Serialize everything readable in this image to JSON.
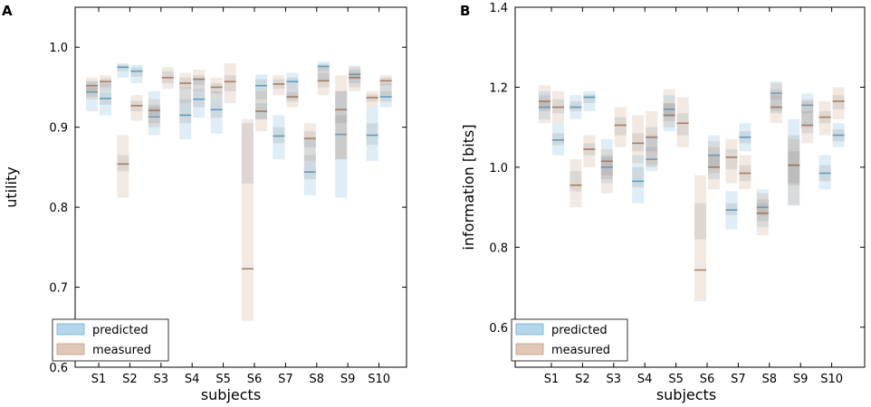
{
  "colors": {
    "predicted_fill": "#6baed6",
    "predicted_line": "#4a90b8",
    "measured_fill": "#c49a7e",
    "measured_line": "#9c6f54",
    "median_line": "#7a7a7a",
    "inner_fill": "#808080"
  },
  "chart_data": [
    {
      "type": "box",
      "panel_label": "A",
      "xlabel": "subjects",
      "ylabel": "utility",
      "ylim": [
        0.6,
        1.05
      ],
      "yticks": [
        0.6,
        0.7,
        0.8,
        0.9,
        1.0
      ],
      "ytick_labels": [
        "0.6",
        "0.7",
        "0.8",
        "0.9",
        "1.0"
      ],
      "categories": [
        "S1",
        "S2",
        "S3",
        "S4",
        "S5",
        "S6",
        "S7",
        "S8",
        "S9",
        "S10"
      ],
      "legend": [
        "predicted",
        "measured"
      ],
      "legend_position": "lower-left",
      "series": [
        {
          "name": "predicted",
          "subseries": [
            {
              "subject": "S1",
              "offset": -1,
              "low": 0.92,
              "high": 0.958,
              "mid": 0.944,
              "q1": 0.938,
              "q3": 0.95
            },
            {
              "subject": "S1",
              "offset": 0,
              "low": 0.915,
              "high": 0.955,
              "mid": 0.936,
              "q1": 0.928,
              "q3": 0.944
            },
            {
              "subject": "S2",
              "offset": -1,
              "low": 0.962,
              "high": 0.98,
              "mid": 0.975,
              "q1": 0.97,
              "q3": 0.978
            },
            {
              "subject": "S2",
              "offset": 0,
              "low": 0.955,
              "high": 0.978,
              "mid": 0.97,
              "q1": 0.963,
              "q3": 0.975
            },
            {
              "subject": "S3",
              "offset": -1,
              "low": 0.89,
              "high": 0.945,
              "mid": 0.913,
              "q1": 0.905,
              "q3": 0.925
            },
            {
              "subject": "S4",
              "offset": -1,
              "low": 0.885,
              "high": 0.95,
              "mid": 0.915,
              "q1": 0.905,
              "q3": 0.935
            },
            {
              "subject": "S4",
              "offset": 0,
              "low": 0.912,
              "high": 0.962,
              "mid": 0.935,
              "q1": 0.925,
              "q3": 0.948
            },
            {
              "subject": "S5",
              "offset": -1,
              "low": 0.892,
              "high": 0.945,
              "mid": 0.922,
              "q1": 0.912,
              "q3": 0.932
            },
            {
              "subject": "S6",
              "offset": 0,
              "low": 0.91,
              "high": 0.966,
              "mid": 0.952,
              "q1": 0.935,
              "q3": 0.96
            },
            {
              "subject": "S7",
              "offset": -1,
              "low": 0.86,
              "high": 0.915,
              "mid": 0.889,
              "q1": 0.88,
              "q3": 0.9
            },
            {
              "subject": "S7",
              "offset": 0,
              "low": 0.935,
              "high": 0.968,
              "mid": 0.957,
              "q1": 0.948,
              "q3": 0.962
            },
            {
              "subject": "S8",
              "offset": -1,
              "low": 0.815,
              "high": 0.885,
              "mid": 0.844,
              "q1": 0.835,
              "q3": 0.865
            },
            {
              "subject": "S8",
              "offset": 0,
              "low": 0.958,
              "high": 0.982,
              "mid": 0.976,
              "q1": 0.97,
              "q3": 0.979
            },
            {
              "subject": "S9",
              "offset": -1,
              "low": 0.812,
              "high": 0.945,
              "mid": 0.891,
              "q1": 0.86,
              "q3": 0.915
            },
            {
              "subject": "S9",
              "offset": 0,
              "low": 0.95,
              "high": 0.977,
              "mid": 0.966,
              "q1": 0.96,
              "q3": 0.972
            },
            {
              "subject": "S10",
              "offset": -1,
              "low": 0.858,
              "high": 0.925,
              "mid": 0.89,
              "q1": 0.878,
              "q3": 0.905
            },
            {
              "subject": "S10",
              "offset": 0,
              "low": 0.925,
              "high": 0.955,
              "mid": 0.938,
              "q1": 0.932,
              "q3": 0.945
            }
          ]
        },
        {
          "name": "measured",
          "subseries": [
            {
              "subject": "S1",
              "offset": 0,
              "low": 0.945,
              "high": 0.965,
              "mid": 0.957,
              "q1": 0.95,
              "q3": 0.961
            },
            {
              "subject": "S1",
              "offset": -1,
              "low": 0.935,
              "high": 0.962,
              "mid": 0.952,
              "q1": 0.945,
              "q3": 0.957
            },
            {
              "subject": "S2",
              "offset": -1,
              "low": 0.812,
              "high": 0.89,
              "mid": 0.854,
              "q1": 0.845,
              "q3": 0.865
            },
            {
              "subject": "S2",
              "offset": 0,
              "low": 0.908,
              "high": 0.94,
              "mid": 0.927,
              "q1": 0.92,
              "q3": 0.933
            },
            {
              "subject": "S3",
              "offset": 0,
              "low": 0.948,
              "high": 0.975,
              "mid": 0.962,
              "q1": 0.955,
              "q3": 0.97
            },
            {
              "subject": "S3",
              "offset": -1,
              "low": 0.9,
              "high": 0.935,
              "mid": 0.921,
              "q1": 0.915,
              "q3": 0.928
            },
            {
              "subject": "S4",
              "offset": -1,
              "low": 0.93,
              "high": 0.968,
              "mid": 0.955,
              "q1": 0.948,
              "q3": 0.962
            },
            {
              "subject": "S4",
              "offset": 0,
              "low": 0.945,
              "high": 0.972,
              "mid": 0.96,
              "q1": 0.953,
              "q3": 0.965
            },
            {
              "subject": "S5",
              "offset": -1,
              "low": 0.932,
              "high": 0.962,
              "mid": 0.95,
              "q1": 0.942,
              "q3": 0.955
            },
            {
              "subject": "S5",
              "offset": 0,
              "low": 0.93,
              "high": 0.98,
              "mid": 0.957,
              "q1": 0.945,
              "q3": 0.965
            },
            {
              "subject": "S6",
              "offset": -1,
              "low": 0.658,
              "high": 0.91,
              "mid": 0.723,
              "q1": 0.83,
              "q3": 0.905
            },
            {
              "subject": "S6",
              "offset": 0,
              "low": 0.895,
              "high": 0.945,
              "mid": 0.92,
              "q1": 0.91,
              "q3": 0.93
            },
            {
              "subject": "S7",
              "offset": -1,
              "low": 0.94,
              "high": 0.965,
              "mid": 0.954,
              "q1": 0.948,
              "q3": 0.96
            },
            {
              "subject": "S7",
              "offset": 0,
              "low": 0.925,
              "high": 0.948,
              "mid": 0.938,
              "q1": 0.932,
              "q3": 0.944
            },
            {
              "subject": "S8",
              "offset": -1,
              "low": 0.858,
              "high": 0.905,
              "mid": 0.886,
              "q1": 0.875,
              "q3": 0.895
            },
            {
              "subject": "S8",
              "offset": 0,
              "low": 0.94,
              "high": 0.975,
              "mid": 0.958,
              "q1": 0.95,
              "q3": 0.968
            },
            {
              "subject": "S9",
              "offset": -1,
              "low": 0.86,
              "high": 0.965,
              "mid": 0.922,
              "q1": 0.905,
              "q3": 0.945
            },
            {
              "subject": "S9",
              "offset": 0,
              "low": 0.945,
              "high": 0.975,
              "mid": 0.962,
              "q1": 0.955,
              "q3": 0.968
            },
            {
              "subject": "S10",
              "offset": -1,
              "low": 0.925,
              "high": 0.945,
              "mid": 0.937,
              "q1": 0.932,
              "q3": 0.941
            },
            {
              "subject": "S10",
              "offset": 0,
              "low": 0.94,
              "high": 0.965,
              "mid": 0.958,
              "q1": 0.952,
              "q3": 0.962
            }
          ]
        }
      ]
    },
    {
      "type": "box",
      "panel_label": "B",
      "xlabel": "subjects",
      "ylabel": "information [bits]",
      "ylim": [
        0.5,
        1.4
      ],
      "yticks": [
        0.6,
        0.8,
        1.0,
        1.2,
        1.4
      ],
      "ytick_labels": [
        "0.6",
        "0.8",
        "1.0",
        "1.2",
        "1.4"
      ],
      "categories": [
        "S1",
        "S2",
        "S3",
        "S4",
        "S5",
        "S6",
        "S7",
        "S8",
        "S9",
        "S10"
      ],
      "legend": [
        "predicted",
        "measured"
      ],
      "legend_position": "lower-left",
      "series": [
        {
          "name": "predicted",
          "subseries": [
            {
              "subject": "S1",
              "offset": -1,
              "low": 1.12,
              "high": 1.19,
              "mid": 1.15,
              "q1": 1.14,
              "q3": 1.165
            },
            {
              "subject": "S1",
              "offset": 0,
              "low": 1.03,
              "high": 1.11,
              "mid": 1.068,
              "q1": 1.055,
              "q3": 1.085
            },
            {
              "subject": "S2",
              "offset": -1,
              "low": 1.12,
              "high": 1.18,
              "mid": 1.15,
              "q1": 1.14,
              "q3": 1.165
            },
            {
              "subject": "S2",
              "offset": 0,
              "low": 1.14,
              "high": 1.19,
              "mid": 1.175,
              "q1": 1.16,
              "q3": 1.182
            },
            {
              "subject": "S3",
              "offset": -1,
              "low": 0.96,
              "high": 1.07,
              "mid": 1.0,
              "q1": 0.98,
              "q3": 1.025
            },
            {
              "subject": "S4",
              "offset": -1,
              "low": 0.91,
              "high": 1.03,
              "mid": 0.965,
              "q1": 0.95,
              "q3": 1.0
            },
            {
              "subject": "S4",
              "offset": 0,
              "low": 0.99,
              "high": 1.08,
              "mid": 1.02,
              "q1": 1.005,
              "q3": 1.05
            },
            {
              "subject": "S5",
              "offset": -1,
              "low": 1.09,
              "high": 1.18,
              "mid": 1.145,
              "q1": 1.125,
              "q3": 1.16
            },
            {
              "subject": "S6",
              "offset": 0,
              "low": 0.97,
              "high": 1.08,
              "mid": 1.03,
              "q1": 1.0,
              "q3": 1.05
            },
            {
              "subject": "S7",
              "offset": -1,
              "low": 0.845,
              "high": 0.94,
              "mid": 0.893,
              "q1": 0.88,
              "q3": 0.91
            },
            {
              "subject": "S7",
              "offset": 0,
              "low": 1.04,
              "high": 1.11,
              "mid": 1.075,
              "q1": 1.06,
              "q3": 1.09
            },
            {
              "subject": "S8",
              "offset": -1,
              "low": 0.85,
              "high": 0.945,
              "mid": 0.9,
              "q1": 0.88,
              "q3": 0.92
            },
            {
              "subject": "S8",
              "offset": 0,
              "low": 1.14,
              "high": 1.215,
              "mid": 1.185,
              "q1": 1.17,
              "q3": 1.195
            },
            {
              "subject": "S9",
              "offset": -1,
              "low": 0.905,
              "high": 1.12,
              "mid": 1.005,
              "q1": 0.96,
              "q3": 1.08
            },
            {
              "subject": "S9",
              "offset": 0,
              "low": 1.1,
              "high": 1.185,
              "mid": 1.155,
              "q1": 1.135,
              "q3": 1.165
            },
            {
              "subject": "S10",
              "offset": -1,
              "low": 0.945,
              "high": 1.03,
              "mid": 0.985,
              "q1": 0.965,
              "q3": 1.005
            },
            {
              "subject": "S10",
              "offset": 0,
              "low": 1.05,
              "high": 1.11,
              "mid": 1.08,
              "q1": 1.065,
              "q3": 1.095
            }
          ]
        },
        {
          "name": "measured",
          "subseries": [
            {
              "subject": "S1",
              "offset": -1,
              "low": 1.11,
              "high": 1.205,
              "mid": 1.165,
              "q1": 1.145,
              "q3": 1.18
            },
            {
              "subject": "S1",
              "offset": 0,
              "low": 1.11,
              "high": 1.19,
              "mid": 1.15,
              "q1": 1.135,
              "q3": 1.17
            },
            {
              "subject": "S2",
              "offset": -1,
              "low": 0.9,
              "high": 1.02,
              "mid": 0.955,
              "q1": 0.94,
              "q3": 0.99
            },
            {
              "subject": "S2",
              "offset": 0,
              "low": 1.0,
              "high": 1.08,
              "mid": 1.045,
              "q1": 1.03,
              "q3": 1.06
            },
            {
              "subject": "S3",
              "offset": -1,
              "low": 0.935,
              "high": 1.045,
              "mid": 1.015,
              "q1": 0.97,
              "q3": 1.03
            },
            {
              "subject": "S3",
              "offset": 0,
              "low": 1.05,
              "high": 1.15,
              "mid": 1.105,
              "q1": 1.08,
              "q3": 1.125
            },
            {
              "subject": "S4",
              "offset": -1,
              "low": 1.01,
              "high": 1.13,
              "mid": 1.06,
              "q1": 1.04,
              "q3": 1.085
            },
            {
              "subject": "S4",
              "offset": 0,
              "low": 1.0,
              "high": 1.14,
              "mid": 1.075,
              "q1": 1.04,
              "q3": 1.1
            },
            {
              "subject": "S5",
              "offset": -1,
              "low": 1.1,
              "high": 1.195,
              "mid": 1.13,
              "q1": 1.115,
              "q3": 1.16
            },
            {
              "subject": "S5",
              "offset": 0,
              "low": 1.05,
              "high": 1.175,
              "mid": 1.11,
              "q1": 1.08,
              "q3": 1.135
            },
            {
              "subject": "S6",
              "offset": -1,
              "low": 0.665,
              "high": 0.98,
              "mid": 0.743,
              "q1": 0.82,
              "q3": 0.91
            },
            {
              "subject": "S6",
              "offset": 0,
              "low": 0.945,
              "high": 1.065,
              "mid": 1.0,
              "q1": 0.985,
              "q3": 1.03
            },
            {
              "subject": "S7",
              "offset": -1,
              "low": 0.96,
              "high": 1.07,
              "mid": 1.025,
              "q1": 0.995,
              "q3": 1.045
            },
            {
              "subject": "S7",
              "offset": 0,
              "low": 0.945,
              "high": 1.03,
              "mid": 0.985,
              "q1": 0.965,
              "q3": 1.005
            },
            {
              "subject": "S8",
              "offset": -1,
              "low": 0.83,
              "high": 0.935,
              "mid": 0.885,
              "q1": 0.865,
              "q3": 0.91
            },
            {
              "subject": "S8",
              "offset": 0,
              "low": 1.11,
              "high": 1.21,
              "mid": 1.15,
              "q1": 1.135,
              "q3": 1.18
            },
            {
              "subject": "S9",
              "offset": -1,
              "low": 0.905,
              "high": 1.07,
              "mid": 1.005,
              "q1": 0.955,
              "q3": 1.04
            },
            {
              "subject": "S9",
              "offset": 0,
              "low": 1.06,
              "high": 1.17,
              "mid": 1.105,
              "q1": 1.085,
              "q3": 1.14
            },
            {
              "subject": "S10",
              "offset": -1,
              "low": 1.08,
              "high": 1.165,
              "mid": 1.125,
              "q1": 1.11,
              "q3": 1.14
            },
            {
              "subject": "S10",
              "offset": 0,
              "low": 1.12,
              "high": 1.2,
              "mid": 1.165,
              "q1": 1.145,
              "q3": 1.18
            }
          ]
        }
      ]
    }
  ]
}
